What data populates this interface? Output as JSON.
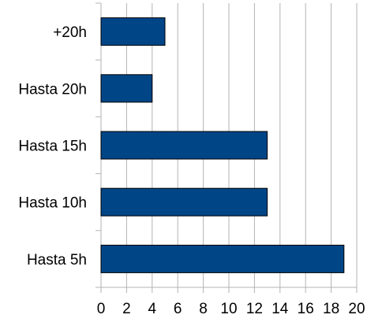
{
  "chart_data": {
    "type": "bar",
    "orientation": "horizontal",
    "categories": [
      "+20h",
      "Hasta 20h",
      "Hasta 15h",
      "Hasta 10h",
      "Hasta 5h"
    ],
    "values": [
      5,
      4,
      13,
      13,
      19
    ],
    "xlim": [
      0,
      20
    ],
    "x_ticks": [
      "0",
      "2",
      "4",
      "6",
      "8",
      "10",
      "12",
      "14",
      "16",
      "18",
      "20"
    ],
    "grid": "vertical",
    "legend": "none",
    "bar_color": "#004586"
  }
}
